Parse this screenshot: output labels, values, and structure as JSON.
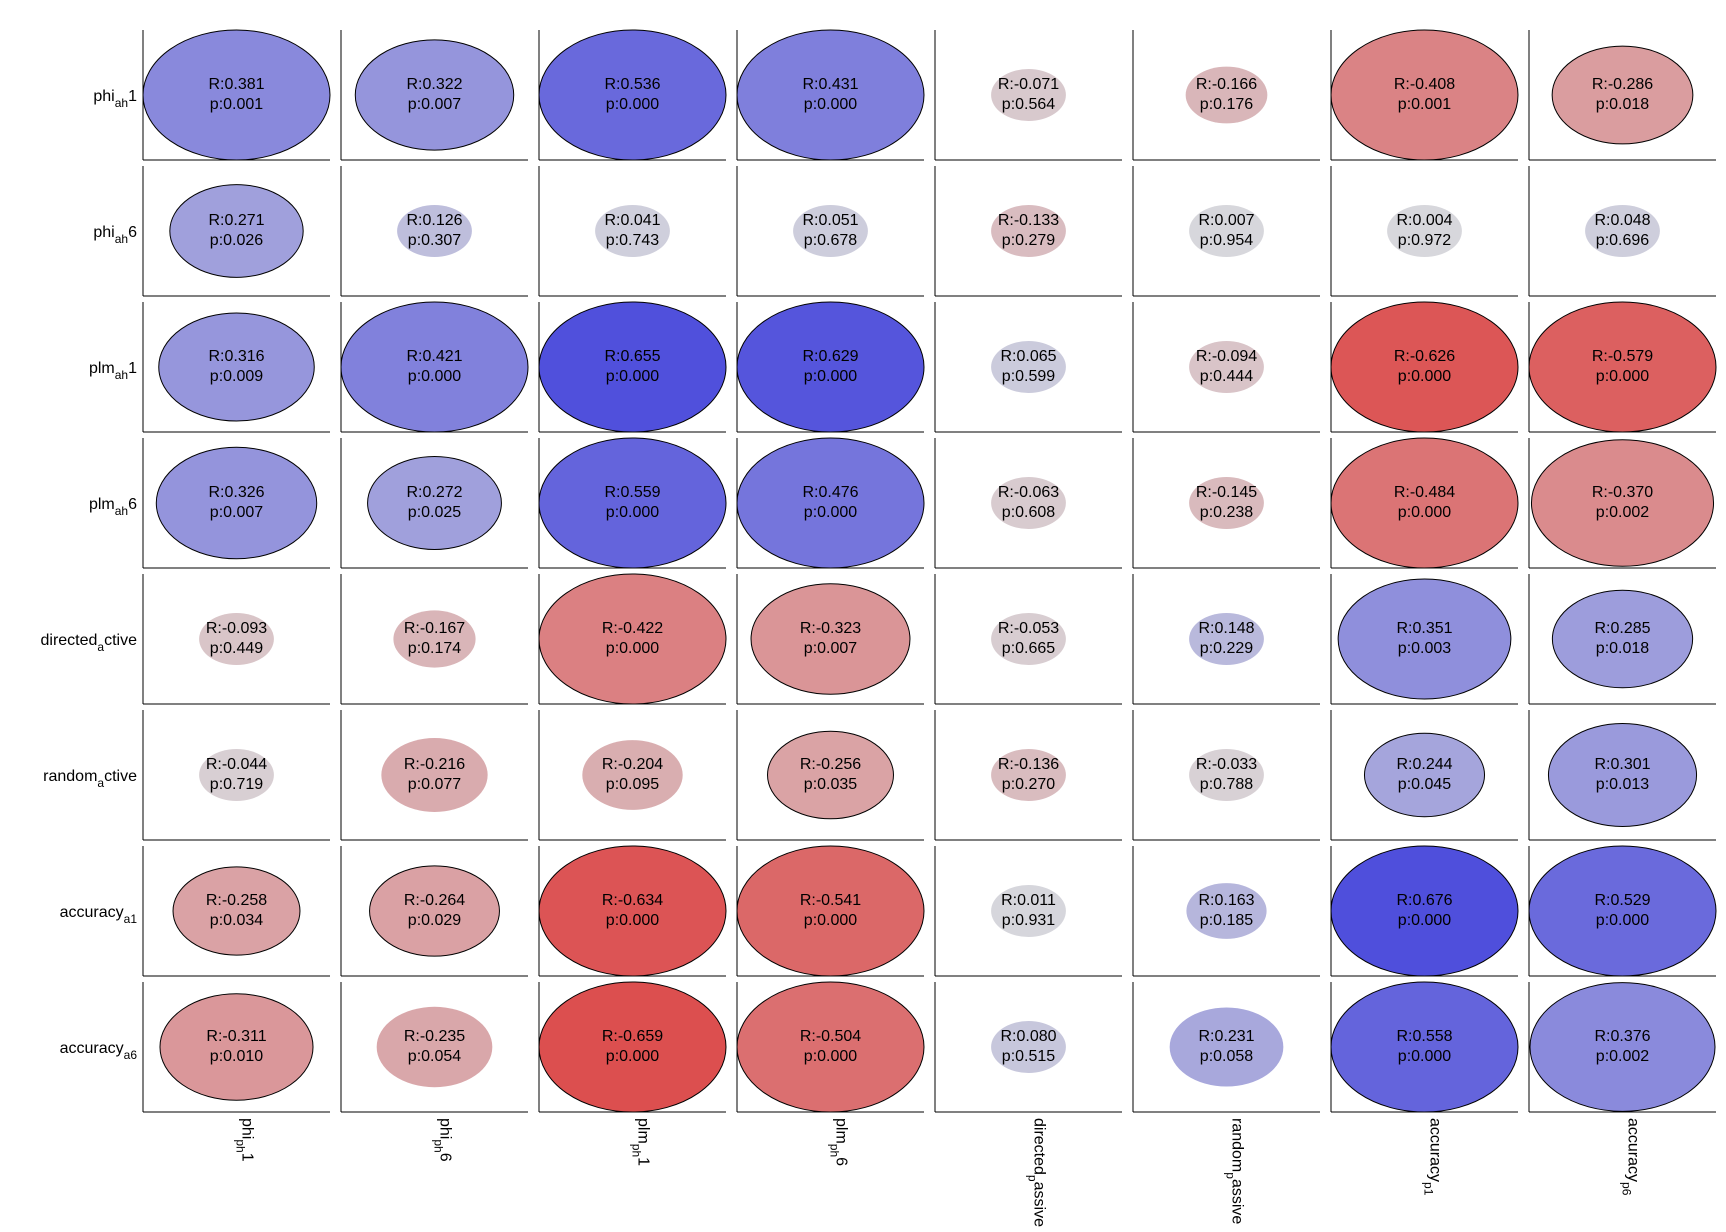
{
  "chart_data": {
    "type": "heatmap",
    "row_labels": [
      {
        "base": "phi",
        "sub": "ah",
        "tail": "1"
      },
      {
        "base": "phi",
        "sub": "ah",
        "tail": "6"
      },
      {
        "base": "plm",
        "sub": "ah",
        "tail": "1"
      },
      {
        "base": "plm",
        "sub": "ah",
        "tail": "6"
      },
      {
        "base": "directed",
        "sub": "a",
        "tail": "ctive"
      },
      {
        "base": "random",
        "sub": "a",
        "tail": "ctive"
      },
      {
        "base": "accuracy",
        "sub": "a1",
        "tail": ""
      },
      {
        "base": "accuracy",
        "sub": "a6",
        "tail": ""
      }
    ],
    "col_labels": [
      {
        "base": "phi",
        "sub": "ph",
        "tail": "1"
      },
      {
        "base": "phi",
        "sub": "ph",
        "tail": "6"
      },
      {
        "base": "plm",
        "sub": "ph",
        "tail": "1"
      },
      {
        "base": "plm",
        "sub": "ph",
        "tail": "6"
      },
      {
        "base": "directed",
        "sub": "p",
        "tail": "assive"
      },
      {
        "base": "random",
        "sub": "p",
        "tail": "assive"
      },
      {
        "base": "accuracy",
        "sub": "p1",
        "tail": ""
      },
      {
        "base": "accuracy",
        "sub": "p6",
        "tail": ""
      }
    ],
    "R": [
      [
        0.381,
        0.322,
        0.536,
        0.431,
        -0.071,
        -0.166,
        -0.408,
        -0.286
      ],
      [
        0.271,
        0.126,
        0.041,
        0.051,
        -0.133,
        0.007,
        0.004,
        0.048
      ],
      [
        0.316,
        0.421,
        0.655,
        0.629,
        0.065,
        -0.094,
        -0.626,
        -0.579
      ],
      [
        0.326,
        0.272,
        0.559,
        0.476,
        -0.063,
        -0.145,
        -0.484,
        -0.37
      ],
      [
        -0.093,
        -0.167,
        -0.422,
        -0.323,
        -0.053,
        0.148,
        0.351,
        0.285
      ],
      [
        -0.044,
        -0.216,
        -0.204,
        -0.256,
        -0.136,
        -0.033,
        0.244,
        0.301
      ],
      [
        -0.258,
        -0.264,
        -0.634,
        -0.541,
        0.011,
        0.163,
        0.676,
        0.529
      ],
      [
        -0.311,
        -0.235,
        -0.659,
        -0.504,
        0.08,
        0.231,
        0.558,
        0.376
      ]
    ],
    "p": [
      [
        "0.001",
        "0.007",
        "0.000",
        "0.000",
        "0.564",
        "0.176",
        "0.001",
        "0.018"
      ],
      [
        "0.026",
        "0.307",
        "0.743",
        "0.678",
        "0.279",
        "0.954",
        "0.972",
        "0.696"
      ],
      [
        "0.009",
        "0.000",
        "0.000",
        "0.000",
        "0.599",
        "0.444",
        "0.000",
        "0.000"
      ],
      [
        "0.007",
        "0.025",
        "0.000",
        "0.000",
        "0.608",
        "0.238",
        "0.000",
        "0.002"
      ],
      [
        "0.449",
        "0.174",
        "0.000",
        "0.007",
        "0.665",
        "0.229",
        "0.003",
        "0.018"
      ],
      [
        "0.719",
        "0.077",
        "0.095",
        "0.035",
        "0.270",
        "0.788",
        "0.045",
        "0.013"
      ],
      [
        "0.034",
        "0.029",
        "0.000",
        "0.000",
        "0.931",
        "0.185",
        "0.000",
        "0.000"
      ],
      [
        "0.010",
        "0.054",
        "0.000",
        "0.000",
        "0.515",
        "0.058",
        "0.000",
        "0.000"
      ]
    ],
    "cell_text": [
      [
        [
          "R:0.381",
          "p:0.001"
        ],
        [
          "R:0.322",
          "p:0.007"
        ],
        [
          "R:0.536",
          "p:0.000"
        ],
        [
          "R:0.431",
          "p:0.000"
        ],
        [
          "R:-0.071",
          "p:0.564"
        ],
        [
          "R:-0.166",
          "p:0.176"
        ],
        [
          "R:-0.408",
          "p:0.001"
        ],
        [
          "R:-0.286",
          "p:0.018"
        ]
      ],
      [
        [
          "R:0.271",
          "p:0.026"
        ],
        [
          "R:0.126",
          "p:0.307"
        ],
        [
          "R:0.041",
          "p:0.743"
        ],
        [
          "R:0.051",
          "p:0.678"
        ],
        [
          "R:-0.133",
          "p:0.279"
        ],
        [
          "R:0.007",
          "p:0.954"
        ],
        [
          "R:0.004",
          "p:0.972"
        ],
        [
          "R:0.048",
          "p:0.696"
        ]
      ],
      [
        [
          "R:0.316",
          "p:0.009"
        ],
        [
          "R:0.421",
          "p:0.000"
        ],
        [
          "R:0.655",
          "p:0.000"
        ],
        [
          "R:0.629",
          "p:0.000"
        ],
        [
          "R:0.065",
          "p:0.599"
        ],
        [
          "R:-0.094",
          "p:0.444"
        ],
        [
          "R:-0.626",
          "p:0.000"
        ],
        [
          "R:-0.579",
          "p:0.000"
        ]
      ],
      [
        [
          "R:0.326",
          "p:0.007"
        ],
        [
          "R:0.272",
          "p:0.025"
        ],
        [
          "R:0.559",
          "p:0.000"
        ],
        [
          "R:0.476",
          "p:0.000"
        ],
        [
          "R:-0.063",
          "p:0.608"
        ],
        [
          "R:-0.145",
          "p:0.238"
        ],
        [
          "R:-0.484",
          "p:0.000"
        ],
        [
          "R:-0.370",
          "p:0.002"
        ]
      ],
      [
        [
          "R:-0.093",
          "p:0.449"
        ],
        [
          "R:-0.167",
          "p:0.174"
        ],
        [
          "R:-0.422",
          "p:0.000"
        ],
        [
          "R:-0.323",
          "p:0.007"
        ],
        [
          "R:-0.053",
          "p:0.665"
        ],
        [
          "R:0.148",
          "p:0.229"
        ],
        [
          "R:0.351",
          "p:0.003"
        ],
        [
          "R:0.285",
          "p:0.018"
        ]
      ],
      [
        [
          "R:-0.044",
          "p:0.719"
        ],
        [
          "R:-0.216",
          "p:0.077"
        ],
        [
          "R:-0.204",
          "p:0.095"
        ],
        [
          "R:-0.256",
          "p:0.035"
        ],
        [
          "R:-0.136",
          "p:0.270"
        ],
        [
          "R:-0.033",
          "p:0.788"
        ],
        [
          "R:0.244",
          "p:0.045"
        ],
        [
          "R:0.301",
          "p:0.013"
        ]
      ],
      [
        [
          "R:-0.258",
          "p:0.034"
        ],
        [
          "R:-0.264",
          "p:0.029"
        ],
        [
          "R:-0.634",
          "p:0.000"
        ],
        [
          "R:-0.541",
          "p:0.000"
        ],
        [
          "R:0.011",
          "p:0.931"
        ],
        [
          "R:0.163",
          "p:0.185"
        ],
        [
          "R:0.676",
          "p:0.000"
        ],
        [
          "R:0.529",
          "p:0.000"
        ]
      ],
      [
        [
          "R:-0.311",
          "p:0.010"
        ],
        [
          "R:-0.235",
          "p:0.054"
        ],
        [
          "R:-0.659",
          "p:0.000"
        ],
        [
          "R:-0.504",
          "p:0.000"
        ],
        [
          "R:0.080",
          "p:0.515"
        ],
        [
          "R:0.231",
          "p:0.058"
        ],
        [
          "R:0.558",
          "p:0.000"
        ],
        [
          "R:0.376",
          "p:0.002"
        ]
      ]
    ],
    "colors": {
      "positive": "#4f4fdc",
      "negative": "#dc4f4f",
      "neutral": "#d8d8dc",
      "outline": "#000000",
      "axis": "#000000"
    },
    "grid": false
  }
}
